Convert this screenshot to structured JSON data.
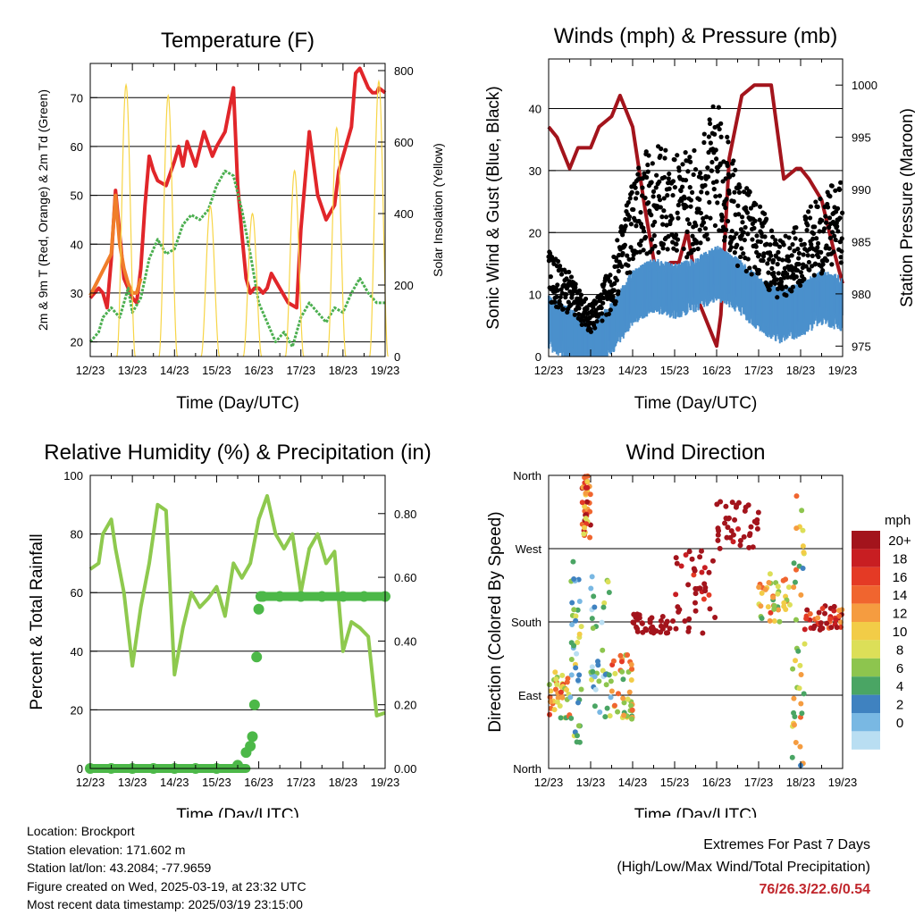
{
  "chart_data": [
    {
      "type": "line",
      "title": "Temperature (F)",
      "xlabel": "Time (Day/UTC)",
      "ylabel": "2m & 9m T (Red, Orange) & 2m Td (Green)",
      "y2label": "Solar Insolation (Yellow)",
      "x_ticks": [
        "12/23",
        "13/23",
        "14/23",
        "15/23",
        "16/23",
        "17/23",
        "18/23",
        "19/23"
      ],
      "ylim": [
        17,
        77
      ],
      "y_ticks": [
        20,
        30,
        40,
        50,
        60,
        70
      ],
      "y2lim": [
        0,
        820
      ],
      "y2_ticks": [
        0,
        200,
        400,
        600,
        800
      ],
      "grid": true,
      "series": [
        {
          "axis": "y",
          "color": "#e1262a",
          "x": [
            0,
            0.1,
            0.2,
            0.3,
            0.4,
            0.5,
            0.6,
            0.8,
            1.0,
            1.1,
            1.2,
            1.3,
            1.4,
            1.5,
            1.6,
            1.8,
            2.0,
            2.1,
            2.2,
            2.3,
            2.5,
            2.7,
            2.9,
            3.0,
            3.2,
            3.4,
            3.5,
            3.6,
            3.7,
            3.8,
            3.9,
            4.0,
            4.1,
            4.2,
            4.3,
            4.5,
            4.7,
            4.9,
            5.0,
            5.2,
            5.4,
            5.6,
            5.8,
            5.9,
            6.0,
            6.1,
            6.2,
            6.3,
            6.4,
            6.5,
            6.6,
            6.7,
            6.8,
            6.85,
            7.0
          ],
          "values": [
            29,
            30,
            31,
            30,
            27,
            37,
            51,
            33,
            29,
            28,
            35,
            48,
            58,
            55,
            53,
            52,
            57,
            60,
            56,
            61,
            56,
            63,
            58,
            60,
            63,
            72,
            52,
            42,
            33,
            30,
            31,
            31,
            30,
            31,
            34,
            31,
            28,
            27,
            43,
            63,
            50,
            45,
            48,
            55,
            58,
            61,
            64,
            75,
            76,
            74,
            72,
            71,
            71,
            72,
            71
          ]
        },
        {
          "axis": "y",
          "color": "#f07d2a",
          "x": [
            0,
            0.5,
            0.6,
            0.7,
            0.8,
            0.9,
            1.0,
            1.1,
            1.2
          ],
          "values": [
            29.5,
            38,
            50,
            40,
            35,
            32,
            30,
            30,
            33
          ]
        },
        {
          "axis": "y",
          "color": "#4caf50",
          "x": [
            0,
            0.2,
            0.3,
            0.5,
            0.7,
            0.9,
            1.0,
            1.2,
            1.4,
            1.6,
            1.8,
            2.0,
            2.2,
            2.4,
            2.6,
            2.8,
            3.0,
            3.2,
            3.4,
            3.6,
            3.8,
            4.0,
            4.2,
            4.4,
            4.6,
            4.8,
            5.0,
            5.2,
            5.4,
            5.6,
            5.8,
            6.0,
            6.2,
            6.4,
            6.6,
            6.8,
            7.0
          ],
          "values": [
            20,
            22,
            25,
            27,
            25,
            31,
            26,
            29,
            37,
            41,
            38,
            39,
            44,
            46,
            45,
            47,
            52,
            55,
            54,
            47,
            38,
            28,
            24,
            20,
            22,
            19,
            25,
            28,
            26,
            24,
            27,
            26,
            30,
            33,
            30,
            28,
            28
          ]
        },
        {
          "axis": "y2",
          "color": "#f7d547",
          "type": "spikes",
          "centers": [
            0.85,
            1.85,
            2.85,
            3.85,
            4.85,
            5.85,
            6.85
          ],
          "peaks": [
            760,
            730,
            420,
            400,
            520,
            640,
            770
          ]
        }
      ]
    },
    {
      "type": "line",
      "title": "Winds (mph) & Pressure (mb)",
      "xlabel": "Time (Day/UTC)",
      "ylabel": "Sonic Wind & Gust (Blue, Black)",
      "y2label": "Station Pressure (Maroon)",
      "x_ticks": [
        "12/23",
        "13/23",
        "14/23",
        "15/23",
        "16/23",
        "17/23",
        "18/23",
        "19/23"
      ],
      "ylim": [
        0,
        48
      ],
      "y_ticks": [
        0,
        10,
        20,
        30,
        40
      ],
      "y2lim": [
        974,
        1002.5
      ],
      "y2_ticks": [
        975,
        980,
        985,
        990,
        995,
        1000
      ],
      "grid": true,
      "series": [
        {
          "axis": "y2",
          "color": "#a3141c",
          "x": [
            0,
            0.2,
            0.5,
            0.7,
            1.0,
            1.2,
            1.5,
            1.7,
            2.0,
            2.3,
            2.6,
            2.9,
            3.1,
            3.3,
            3.6,
            3.9,
            4.0,
            4.1,
            4.3,
            4.6,
            4.9,
            5.1,
            5.3,
            5.6,
            5.9,
            6.0,
            6.2,
            6.5,
            6.8,
            7.0
          ],
          "values": [
            996,
            995,
            992,
            994,
            994,
            996,
            997,
            999,
            996,
            988,
            981,
            983,
            983,
            986,
            979,
            976,
            975,
            978,
            993,
            999,
            1000,
            1000,
            1000,
            991,
            992,
            992,
            991,
            989,
            984,
            981
          ]
        },
        {
          "axis": "y",
          "color": "#4b90cc",
          "label": "wind",
          "x": [
            0,
            0.5,
            1.0,
            1.5,
            2.0,
            2.5,
            3.0,
            3.5,
            4.0,
            4.5,
            5.0,
            5.5,
            6.0,
            6.5,
            7.0
          ],
          "values": [
            8,
            6,
            3,
            7,
            12,
            14,
            13,
            14,
            16,
            14,
            11,
            9,
            10,
            12,
            11
          ]
        },
        {
          "axis": "y",
          "color": "#000000",
          "label": "gust",
          "x": [
            0,
            0.5,
            1.0,
            1.5,
            2.0,
            2.5,
            3.0,
            3.5,
            4.0,
            4.5,
            5.0,
            5.5,
            6.0,
            6.5,
            7.0
          ],
          "values": [
            13,
            10,
            6,
            11,
            22,
            26,
            24,
            25,
            31,
            22,
            19,
            14,
            16,
            20,
            21
          ]
        }
      ]
    },
    {
      "type": "line",
      "title": "Relative Humidity (%) & Precipitation (in)",
      "xlabel": "Time (Day/UTC)",
      "ylabel": "Percent & Total Rainfall",
      "x_ticks": [
        "12/23",
        "13/23",
        "14/23",
        "15/23",
        "16/23",
        "17/23",
        "18/23",
        "19/23"
      ],
      "ylim": [
        0,
        100
      ],
      "y_ticks": [
        0,
        20,
        40,
        60,
        80,
        100
      ],
      "y2lim": [
        0,
        0.92
      ],
      "y2_ticks": [
        "0.00",
        "0.20",
        "0.40",
        "0.60",
        "0.80"
      ],
      "grid": true,
      "series": [
        {
          "axis": "y",
          "color": "#8ec94e",
          "x": [
            0,
            0.2,
            0.3,
            0.5,
            0.6,
            0.8,
            1.0,
            1.2,
            1.4,
            1.6,
            1.8,
            2.0,
            2.2,
            2.4,
            2.6,
            2.8,
            3.0,
            3.2,
            3.4,
            3.6,
            3.8,
            4.0,
            4.2,
            4.4,
            4.6,
            4.8,
            5.0,
            5.2,
            5.4,
            5.6,
            5.8,
            6.0,
            6.2,
            6.4,
            6.6,
            6.8,
            7.0
          ],
          "values": [
            68,
            70,
            80,
            85,
            75,
            60,
            35,
            55,
            70,
            90,
            88,
            32,
            48,
            60,
            55,
            58,
            62,
            52,
            70,
            65,
            70,
            85,
            93,
            80,
            75,
            80,
            60,
            75,
            80,
            70,
            74,
            40,
            50,
            48,
            45,
            18,
            19
          ]
        },
        {
          "axis": "y2",
          "color": "#4cb848",
          "type": "dots",
          "x": [
            0,
            0.5,
            1.0,
            1.5,
            2.0,
            2.5,
            3.0,
            3.5,
            3.7,
            3.8,
            3.85,
            3.9,
            3.95,
            4.0,
            4.05,
            4.1,
            4.5,
            5.0,
            5.5,
            6.0,
            6.5,
            7.0
          ],
          "values": [
            0,
            0,
            0,
            0,
            0,
            0,
            0,
            0.01,
            0.05,
            0.07,
            0.1,
            0.2,
            0.35,
            0.5,
            0.54,
            0.54,
            0.54,
            0.54,
            0.54,
            0.54,
            0.54,
            0.54
          ]
        }
      ]
    },
    {
      "type": "scatter",
      "title": "Wind Direction",
      "xlabel": "Time (Day/UTC)",
      "ylabel": "Direction (Colored By Speed)",
      "x_ticks": [
        "12/23",
        "13/23",
        "14/23",
        "15/23",
        "16/23",
        "17/23",
        "18/23",
        "19/23"
      ],
      "y_ticks": [
        "North",
        "East",
        "South",
        "West",
        "North"
      ],
      "y_tick_values": [
        0,
        90,
        180,
        270,
        360
      ],
      "ylim": [
        0,
        360
      ],
      "grid": true,
      "legend": {
        "title": "mph",
        "labels": [
          "20+",
          "18",
          "16",
          "14",
          "12",
          "10",
          "8",
          "6",
          "4",
          "2",
          "0"
        ],
        "colors": [
          "#a3141c",
          "#c81e22",
          "#e43a25",
          "#f0652f",
          "#f59c40",
          "#f2cc47",
          "#dcdf58",
          "#8dc54e",
          "#4aa564",
          "#3f82c0",
          "#79b8e3",
          "#b9def2"
        ]
      },
      "groups": [
        {
          "x0": 0,
          "x1": 0.5,
          "d0": 60,
          "d1": 120,
          "speed": 6
        },
        {
          "x0": 0.5,
          "x1": 0.8,
          "d0": 30,
          "d1": 270,
          "speed": 3
        },
        {
          "x0": 0.8,
          "x1": 1.0,
          "d0": 280,
          "d1": 360,
          "speed": 8
        },
        {
          "x0": 1.0,
          "x1": 1.5,
          "d0": 60,
          "d1": 240,
          "speed": 2
        },
        {
          "x0": 1.5,
          "x1": 2.0,
          "d0": 60,
          "d1": 140,
          "speed": 6
        },
        {
          "x0": 2.0,
          "x1": 3.0,
          "d0": 165,
          "d1": 190,
          "speed": 14
        },
        {
          "x0": 3.0,
          "x1": 4.0,
          "d0": 165,
          "d1": 270,
          "speed": 12
        },
        {
          "x0": 4.0,
          "x1": 5.0,
          "d0": 270,
          "d1": 330,
          "speed": 13
        },
        {
          "x0": 5.0,
          "x1": 5.8,
          "d0": 180,
          "d1": 240,
          "speed": 6
        },
        {
          "x0": 5.8,
          "x1": 6.1,
          "d0": 0,
          "d1": 350,
          "speed": 5
        },
        {
          "x0": 6.1,
          "x1": 7.0,
          "d0": 170,
          "d1": 200,
          "speed": 10
        }
      ]
    }
  ],
  "footer": {
    "location": "Location: Brockport",
    "elevation": "Station elevation: 171.602 m",
    "latlon": "Station lat/lon: 43.2084; -77.9659",
    "created": "Figure created on Wed, 2025-03-19, at 23:32 UTC",
    "timestamp": "Most recent data timestamp: 2025/03/19 23:15:00"
  },
  "extremes": {
    "line1": "Extremes For Past 7 Days",
    "line2": "(High/Low/Max Wind/Total Precipitation)",
    "values": "76/26.3/22.6/0.54"
  }
}
